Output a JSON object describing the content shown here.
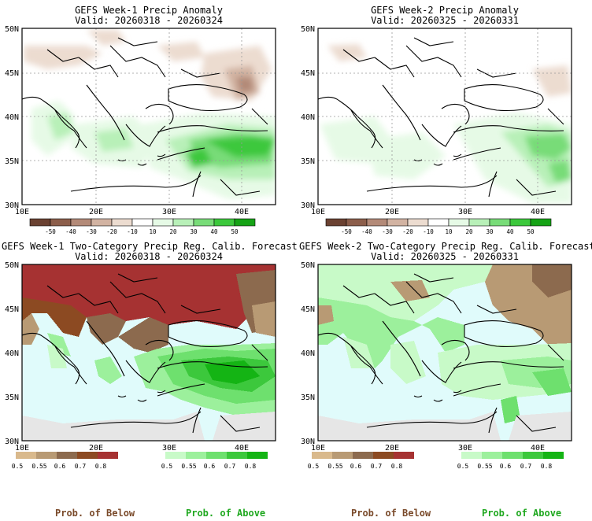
{
  "panels": [
    {
      "title": "GEFS Week-1 Precip Anomaly",
      "valid": "Valid: 20260318 - 20260324"
    },
    {
      "title": "GEFS Week-2 Precip Anomaly",
      "valid": "Valid: 20260325 - 20260331"
    },
    {
      "title": "GEFS Week-1 Two-Category Precip Reg. Calib. Forecast",
      "valid": "Valid: 20260318 - 20260324"
    },
    {
      "title": "GEFS Week-2 Two-Category Precip Reg. Calib. Forecast",
      "valid": "Valid: 20260325 - 20260331"
    }
  ],
  "axes": {
    "lat_labels": [
      "50N",
      "45N",
      "40N",
      "35N",
      "30N"
    ],
    "lon_labels": [
      "10E",
      "20E",
      "30E",
      "40E"
    ]
  },
  "anomaly_colorbar": {
    "ticks": [
      "-50",
      "-40",
      "-30",
      "-20",
      "-10",
      "10",
      "20",
      "30",
      "40",
      "50"
    ],
    "colors": [
      "#6b4232",
      "#8c5e4b",
      "#b38a78",
      "#d2b3a2",
      "#ecdcd0",
      "#ffffff",
      "#e6fae6",
      "#b8f0b8",
      "#78dc78",
      "#3cc83c",
      "#16a316"
    ]
  },
  "prob_colorbar": {
    "below_ticks": [
      "0.5",
      "0.55",
      "0.6",
      "0.7",
      "0.8"
    ],
    "above_ticks": [
      "0.5",
      "0.55",
      "0.6",
      "0.7",
      "0.8"
    ],
    "below_colors": [
      "#d9b98c",
      "#b89a74",
      "#8c6a4e",
      "#8c4a22",
      "#a63232"
    ],
    "above_colors": [
      "#c8fac8",
      "#9cf09c",
      "#6ee06e",
      "#3cc83c",
      "#14b414"
    ]
  },
  "labels": {
    "prob_below": "Prob. of Below",
    "prob_above": "Prob. of Above"
  },
  "colors": {
    "sea": "#e0fbfb",
    "no_data": "#e6e6e6",
    "below_text": "#7a4a2a",
    "above_text": "#1fa81f"
  }
}
